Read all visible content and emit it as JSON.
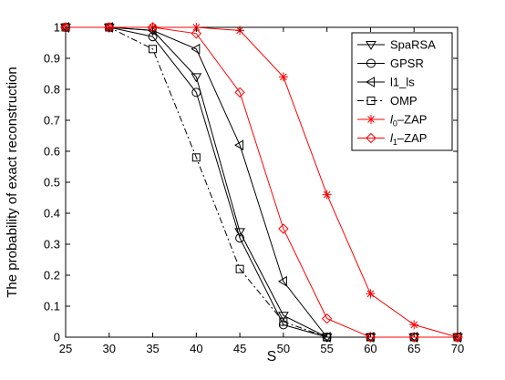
{
  "chart_data": {
    "type": "line",
    "title": "",
    "xlabel": "S",
    "ylabel": "The probability of exact reconstruction",
    "xlim": [
      25,
      70
    ],
    "ylim": [
      0,
      1
    ],
    "xticks": [
      25,
      30,
      35,
      40,
      45,
      50,
      55,
      60,
      65,
      70
    ],
    "yticks": [
      0,
      0.1,
      0.2,
      0.3,
      0.4,
      0.5,
      0.6,
      0.7,
      0.8,
      0.9,
      1
    ],
    "grid": false,
    "legend_position": "top-right",
    "x": [
      25,
      30,
      35,
      40,
      45,
      50,
      55,
      60,
      65,
      70
    ],
    "series": [
      {
        "name": "SpaRSA",
        "color": "#000000",
        "dash": "solid",
        "marker": "triangle-down",
        "values": [
          1,
          1,
          0.99,
          0.84,
          0.34,
          0.07,
          0,
          0,
          0,
          0
        ]
      },
      {
        "name": "GPSR",
        "color": "#000000",
        "dash": "solid",
        "marker": "circle",
        "values": [
          1,
          1,
          0.97,
          0.79,
          0.32,
          0.04,
          0,
          0,
          0,
          0
        ]
      },
      {
        "name": "l1_ls",
        "color": "#000000",
        "dash": "solid",
        "marker": "triangle-left",
        "values": [
          1,
          1,
          0.99,
          0.93,
          0.62,
          0.18,
          0,
          0,
          0,
          0
        ]
      },
      {
        "name": "OMP",
        "color": "#000000",
        "dash": "dashdot",
        "marker": "square",
        "values": [
          1,
          1,
          0.93,
          0.58,
          0.22,
          0.05,
          0,
          0,
          0,
          0
        ]
      },
      {
        "name": "l0–ZAP",
        "label_base": "l",
        "label_sub": "0",
        "label_rest": "–ZAP",
        "color": "#ff0000",
        "dash": "solid",
        "marker": "star",
        "values": [
          1,
          1,
          1,
          1,
          0.99,
          0.84,
          0.46,
          0.14,
          0.04,
          0
        ]
      },
      {
        "name": "l1–ZAP",
        "label_base": "l",
        "label_sub": "1",
        "label_rest": "–ZAP",
        "color": "#ff0000",
        "dash": "solid",
        "marker": "diamond",
        "values": [
          1,
          1,
          1,
          0.98,
          0.79,
          0.35,
          0.06,
          0,
          0,
          0
        ]
      }
    ]
  }
}
